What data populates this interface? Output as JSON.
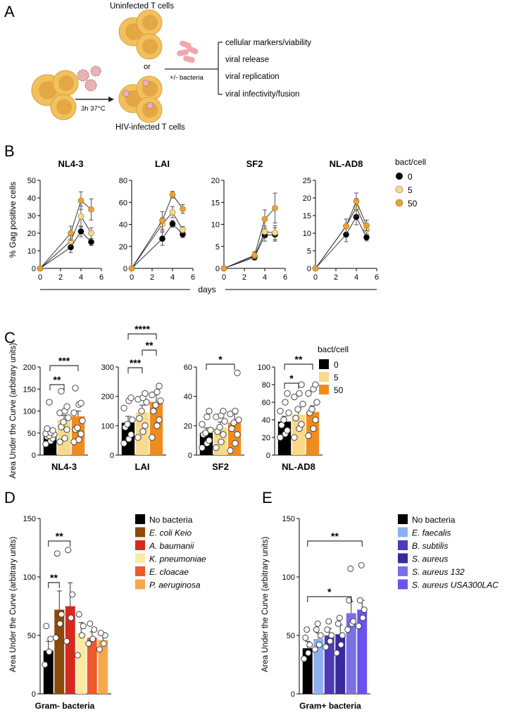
{
  "colors": {
    "black": "#000000",
    "light_yellow": "#f9d98a",
    "orange": "#f0a030",
    "bar_orange": "#f08c1e",
    "cell": "#f2c15e",
    "cell_edge": "#d9a23a",
    "cell_nucleus": "#e3a743",
    "bacteria": "#f1a8ac",
    "virus": "#e8b2b6",
    "ecoli": "#8a4a0c",
    "abaum": "#d62a1f",
    "kpneu": "#fdeaa0",
    "ecloac": "#ee5a2c",
    "paer": "#f7a84e",
    "efae": "#8fb0ef",
    "bsub": "#4d3ab8",
    "saur": "#3a2a9c",
    "saur132": "#7b6fe6",
    "saurusa": "#6b52ef"
  },
  "panel_labels": [
    "A",
    "B",
    "C",
    "D",
    "E"
  ],
  "panel_a": {
    "uninfected_label": "Uninfected T cells",
    "infected_label": "HIV-infected T cells",
    "or_label": "or",
    "incubation_label": "3h 37°C",
    "bacteria_label": "+/- bacteria",
    "readouts": [
      "cellular markers/viability",
      "viral release",
      "viral replication",
      "viral infectivity/fusion"
    ]
  },
  "chart_data": [
    {
      "id": "B",
      "type": "line",
      "ylabel": "% Gag positive cells",
      "xlabel": "days",
      "legend_title": "bact/cell",
      "legend": [
        "0",
        "5",
        "50"
      ],
      "series_colors": [
        "#000000",
        "#f9d98a",
        "#f0a030"
      ],
      "x": [
        0,
        3,
        4,
        5
      ],
      "xticks": [
        0,
        2,
        4,
        6
      ],
      "subplots": [
        {
          "title": "NL4-3",
          "ylim": [
            0,
            50
          ],
          "yticks": [
            0,
            10,
            20,
            30,
            40,
            50
          ],
          "series": [
            {
              "name": "0",
              "values": [
                0,
                12,
                21,
                15
              ],
              "err": [
                0,
                3,
                3,
                2
              ]
            },
            {
              "name": "5",
              "values": [
                0,
                15.5,
                29.5,
                20
              ],
              "err": [
                0,
                3,
                6,
                3
              ]
            },
            {
              "name": "50",
              "values": [
                0,
                20,
                38.5,
                33.5
              ],
              "err": [
                0,
                4,
                5,
                6
              ]
            }
          ]
        },
        {
          "title": "LAI",
          "ylim": [
            0,
            80
          ],
          "yticks": [
            0,
            20,
            40,
            60,
            80
          ],
          "series": [
            {
              "name": "0",
              "values": [
                0,
                27,
                40.5,
                31
              ],
              "err": [
                0,
                6,
                3,
                3
              ]
            },
            {
              "name": "5",
              "values": [
                0,
                40,
                51,
                35
              ],
              "err": [
                0,
                6,
                5,
                3
              ]
            },
            {
              "name": "50",
              "values": [
                0,
                43.5,
                67,
                54
              ],
              "err": [
                0,
                8,
                3,
                4
              ]
            }
          ]
        },
        {
          "title": "SF2",
          "ylim": [
            0,
            20
          ],
          "yticks": [
            0,
            5,
            10,
            15,
            20
          ],
          "series": [
            {
              "name": "0",
              "values": [
                0,
                2.5,
                7.5,
                7.7
              ],
              "err": [
                0,
                0.6,
                1.3,
                1.5
              ]
            },
            {
              "name": "5",
              "values": [
                0,
                2.8,
                8.3,
                8.1
              ],
              "err": [
                0,
                0.7,
                1.3,
                1.6
              ]
            },
            {
              "name": "50",
              "values": [
                0,
                3,
                11.2,
                13.7
              ],
              "err": [
                0,
                0.8,
                2.1,
                3.4
              ]
            }
          ]
        },
        {
          "title": "NL-AD8",
          "ylim": [
            0,
            25
          ],
          "yticks": [
            0,
            5,
            10,
            15,
            20,
            25
          ],
          "series": [
            {
              "name": "0",
              "values": [
                0,
                9.6,
                14.6,
                8.8
              ],
              "err": [
                0,
                2,
                2.2,
                1
              ]
            },
            {
              "name": "5",
              "values": [
                0,
                12,
                17.3,
                11
              ],
              "err": [
                0,
                2,
                2.5,
                1.5
              ]
            },
            {
              "name": "50",
              "values": [
                0,
                12,
                19,
                12.2
              ],
              "err": [
                0,
                2,
                2.4,
                1.5
              ]
            }
          ]
        }
      ]
    },
    {
      "id": "C",
      "type": "bar",
      "ylabel": "Area Under the Curve (arbitrary units)",
      "legend_title": "bact/cell",
      "legend": [
        "0",
        "5",
        "50"
      ],
      "bar_colors": [
        "#000000",
        "#f9d98a",
        "#f08c1e"
      ],
      "subplots": [
        {
          "title": "NL4-3",
          "ylim": [
            0,
            200
          ],
          "yticks": [
            0,
            50,
            100,
            150,
            200
          ],
          "values": [
            46,
            80,
            88
          ],
          "err": [
            6,
            10,
            12
          ],
          "points": [
            [
              25,
              32,
              38,
              42,
              44,
              47,
              49,
              51,
              56,
              60,
              120
            ],
            [
              30,
              38,
              58,
              64,
              75,
              85,
              96,
              100,
              110,
              145
            ],
            [
              30,
              35,
              48,
              58,
              62,
              78,
              96,
              115,
              118,
              152
            ]
          ],
          "sig": [
            {
              "from": 0,
              "to": 1,
              "label": "**"
            },
            {
              "from": 0,
              "to": 2,
              "label": "***"
            }
          ]
        },
        {
          "title": "LAI",
          "ylim": [
            0,
            300
          ],
          "yticks": [
            0,
            100,
            200,
            300
          ],
          "values": [
            110,
            145,
            181
          ],
          "err": [
            22,
            25,
            26
          ],
          "points": [
            [
              40,
              55,
              70,
              95,
              105,
              120,
              160,
              185,
              195
            ],
            [
              60,
              80,
              100,
              125,
              150,
              180,
              190,
              195,
              210
            ],
            [
              60,
              100,
              120,
              150,
              170,
              185,
              205,
              215,
              235
            ]
          ],
          "sig": [
            {
              "from": 0,
              "to": 1,
              "label": "***"
            },
            {
              "from": 1,
              "to": 2,
              "label": "**"
            },
            {
              "from": 0,
              "to": 2,
              "label": "****"
            }
          ]
        },
        {
          "title": "SF2",
          "ylim": [
            0,
            60
          ],
          "yticks": [
            0,
            20,
            40,
            60
          ],
          "values": [
            15,
            18.5,
            22
          ],
          "err": [
            3.5,
            4,
            6
          ],
          "points": [
            [
              5,
              8,
              10,
              14,
              15,
              17,
              21,
              26,
              30
            ],
            [
              5,
              9,
              14,
              16,
              19,
              23,
              26,
              27,
              30
            ],
            [
              3,
              8,
              14,
              18,
              22,
              24,
              28,
              30,
              56
            ]
          ],
          "sig": [
            {
              "from": 0,
              "to": 2,
              "label": "*"
            }
          ]
        },
        {
          "title": "NL-AD8",
          "ylim": [
            0,
            100
          ],
          "yticks": [
            0,
            20,
            40,
            60,
            80,
            100
          ],
          "values": [
            38,
            46,
            49
          ],
          "err": [
            6,
            8,
            7
          ],
          "points": [
            [
              20,
              24,
              28,
              34,
              40,
              48,
              50,
              60,
              70
            ],
            [
              20,
              30,
              35,
              42,
              52,
              58,
              66,
              70,
              80
            ],
            [
              22,
              30,
              40,
              48,
              52,
              60,
              70,
              75,
              80
            ]
          ],
          "sig": [
            {
              "from": 0,
              "to": 1,
              "label": "*"
            },
            {
              "from": 0,
              "to": 2,
              "label": "**"
            }
          ]
        }
      ]
    },
    {
      "id": "D",
      "type": "bar",
      "ylabel": "Area Under the Curve (arbitrary units)",
      "xlabel": "Gram- bacteria",
      "ylim": [
        0,
        150
      ],
      "yticks": [
        0,
        50,
        100,
        150
      ],
      "categories": [
        "No bacteria",
        "E. coli Keio",
        "A. baumanii",
        "K. pneumoniae",
        "E. cloacae",
        "P. aeruginosa"
      ],
      "italic": [
        false,
        true,
        true,
        true,
        true,
        true
      ],
      "bar_colors": [
        "#000000",
        "#8a4a0c",
        "#d62a1f",
        "#fdeaa0",
        "#ee5a2c",
        "#f7a84e"
      ],
      "values": [
        37,
        72,
        75,
        52,
        48,
        46
      ],
      "err": [
        8,
        16,
        20,
        9,
        5,
        5
      ],
      "points": [
        [
          25,
          36,
          47,
          58
        ],
        [
          48,
          60,
          68,
          120
        ],
        [
          45,
          65,
          85,
          123
        ],
        [
          33,
          50,
          58,
          68
        ],
        [
          43,
          47,
          55,
          60
        ],
        [
          38,
          43,
          50,
          52
        ]
      ],
      "sig": [
        {
          "from": 0,
          "to": 1,
          "label": "**"
        },
        {
          "from": 0,
          "to": 2,
          "label": "**"
        }
      ]
    },
    {
      "id": "E",
      "type": "bar",
      "ylabel": "Area Under the Curve (arbitrary units)",
      "xlabel": "Gram+ bacteria",
      "ylim": [
        0,
        150
      ],
      "yticks": [
        0,
        50,
        100,
        150
      ],
      "categories": [
        "No bacteria",
        "E. faecalis",
        "B. subtilis",
        "S. aureus",
        "S. aureus 132",
        "S. aureus USA300LAC"
      ],
      "italic": [
        false,
        true,
        true,
        true,
        true,
        true
      ],
      "bar_colors": [
        "#000000",
        "#8fb0ef",
        "#4d3ab8",
        "#3a2a9c",
        "#7b6fe6",
        "#6b52ef"
      ],
      "values": [
        39,
        47,
        50,
        51,
        69,
        72
      ],
      "err": [
        6,
        5,
        6,
        8,
        10,
        8
      ],
      "points": [
        [
          30,
          35,
          42,
          48,
          55
        ],
        [
          38,
          42,
          50,
          55,
          60
        ],
        [
          40,
          45,
          50,
          55,
          62
        ],
        [
          35,
          42,
          50,
          60,
          65
        ],
        [
          55,
          60,
          62,
          80,
          107
        ],
        [
          58,
          65,
          72,
          80,
          110
        ]
      ],
      "sig": [
        {
          "from": 0,
          "to": 4,
          "label": "*"
        },
        {
          "from": 0,
          "to": 5,
          "label": "**"
        }
      ]
    }
  ]
}
